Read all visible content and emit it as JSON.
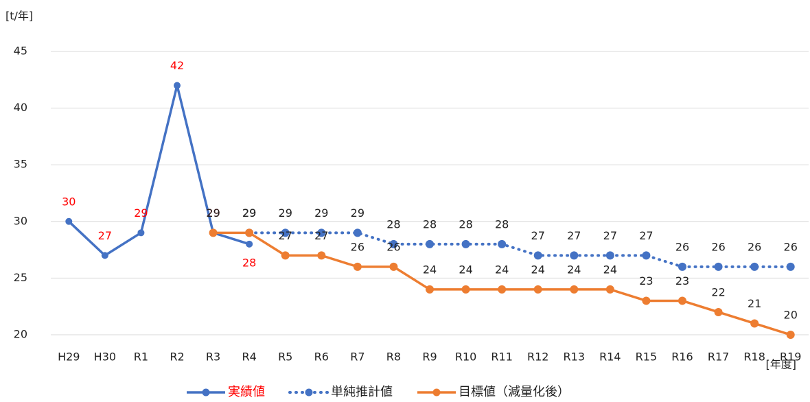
{
  "chart_data": {
    "type": "line",
    "y_label": "[t/年]",
    "x_label": "[年度]",
    "categories": [
      "H29",
      "H30",
      "R1",
      "R2",
      "R3",
      "R4",
      "R5",
      "R6",
      "R7",
      "R8",
      "R9",
      "R10",
      "R11",
      "R12",
      "R13",
      "R14",
      "R15",
      "R16",
      "R17",
      "R18",
      "R19"
    ],
    "series": [
      {
        "name": "実績値",
        "color": "#4472c4",
        "label_color": "#ff0000",
        "dash": false,
        "values": [
          30,
          27,
          29,
          42,
          29,
          28,
          null,
          null,
          null,
          null,
          null,
          null,
          null,
          null,
          null,
          null,
          null,
          null,
          null,
          null,
          null
        ]
      },
      {
        "name": "単純推計値",
        "color": "#4472c4",
        "label_color": "#222222",
        "dash": true,
        "values": [
          null,
          null,
          null,
          null,
          null,
          29,
          29,
          29,
          29,
          28,
          28,
          28,
          28,
          27,
          27,
          27,
          27,
          26,
          26,
          26,
          26
        ]
      },
      {
        "name": "目標値（減量化後）",
        "color": "#ed7d31",
        "label_color": "#222222",
        "dash": false,
        "values": [
          null,
          null,
          null,
          null,
          29,
          29,
          27,
          27,
          26,
          26,
          24,
          24,
          24,
          24,
          24,
          24,
          23,
          23,
          22,
          21,
          20
        ]
      }
    ],
    "ylim": [
      20,
      45
    ],
    "yticks": [
      20,
      25,
      30,
      35,
      40,
      45
    ],
    "grid": true
  }
}
